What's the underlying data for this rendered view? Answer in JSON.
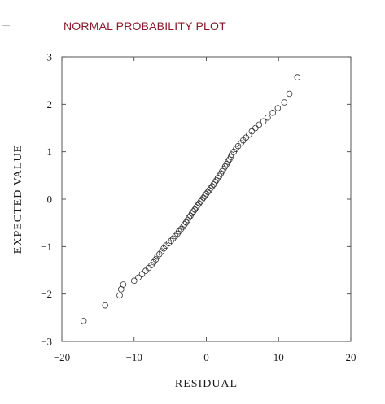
{
  "chart_data": {
    "type": "scatter",
    "title": "NORMAL PROBABILITY PLOT",
    "xlabel": "RESIDUAL",
    "ylabel": "EXPECTED VALUE",
    "xlim": [
      -20,
      20
    ],
    "ylim": [
      -3,
      3
    ],
    "xticks": [
      -20,
      -10,
      0,
      10,
      20
    ],
    "yticks": [
      -3,
      -2,
      -1,
      0,
      1,
      2,
      3
    ],
    "xtick_labels": [
      "−20",
      "−10",
      "0",
      "10",
      "20"
    ],
    "ytick_labels": [
      "−3",
      "−2",
      "−1",
      "0",
      "1",
      "2",
      "3"
    ],
    "grid": false,
    "marker": "open-circle",
    "series": [
      {
        "x": [
          -17.0,
          -14.0,
          -12.0,
          -11.8,
          -11.5,
          -10.0,
          -9.4,
          -8.9,
          -8.4,
          -8.0,
          -7.6,
          -7.3,
          -7.0,
          -6.8,
          -6.5,
          -6.2,
          -5.9,
          -5.6,
          -5.2,
          -4.9,
          -4.6,
          -4.3,
          -4.0,
          -3.8,
          -3.5,
          -3.2,
          -3.0,
          -2.8,
          -2.6,
          -2.4,
          -2.2,
          -2.0,
          -1.8,
          -1.6,
          -1.4,
          -1.2,
          -1.0,
          -0.8,
          -0.6,
          -0.4,
          -0.2,
          0.0,
          0.2,
          0.4,
          0.6,
          0.8,
          1.0,
          1.2,
          1.4,
          1.6,
          1.8,
          2.0,
          2.2,
          2.4,
          2.6,
          2.8,
          3.0,
          3.2,
          3.4,
          3.5,
          3.8,
          4.1,
          4.4,
          4.8,
          5.1,
          5.5,
          5.9,
          6.3,
          6.8,
          7.3,
          7.9,
          8.5,
          9.2,
          9.9,
          10.8,
          11.5,
          12.6
        ],
        "y": [
          -2.57,
          -2.24,
          -2.03,
          -1.9,
          -1.8,
          -1.72,
          -1.65,
          -1.58,
          -1.51,
          -1.45,
          -1.39,
          -1.33,
          -1.27,
          -1.21,
          -1.16,
          -1.1,
          -1.04,
          -0.98,
          -0.93,
          -0.88,
          -0.83,
          -0.78,
          -0.73,
          -0.68,
          -0.63,
          -0.58,
          -0.53,
          -0.49,
          -0.44,
          -0.39,
          -0.35,
          -0.3,
          -0.26,
          -0.22,
          -0.17,
          -0.13,
          -0.09,
          -0.05,
          -0.01,
          0.03,
          0.07,
          0.11,
          0.15,
          0.19,
          0.23,
          0.27,
          0.31,
          0.36,
          0.4,
          0.45,
          0.49,
          0.54,
          0.59,
          0.64,
          0.69,
          0.74,
          0.79,
          0.84,
          0.89,
          0.94,
          1.0,
          1.06,
          1.12,
          1.18,
          1.24,
          1.3,
          1.36,
          1.43,
          1.5,
          1.57,
          1.64,
          1.72,
          1.82,
          1.92,
          2.04,
          2.22,
          2.57
        ]
      }
    ]
  }
}
